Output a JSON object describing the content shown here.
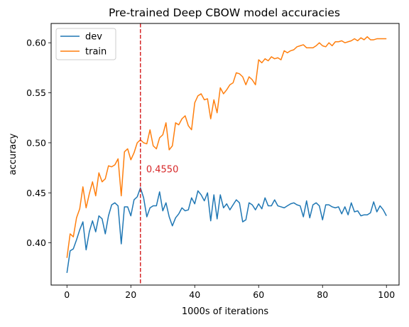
{
  "chart_data": {
    "type": "line",
    "title": "Pre-trained Deep CBOW model accuracies",
    "xlabel": "1000s of iterations",
    "ylabel": "accuracy",
    "xlim": [
      -4.95,
      103.95
    ],
    "ylim": [
      0.3578,
      0.6193
    ],
    "xticks": [
      0,
      20,
      40,
      60,
      80,
      100
    ],
    "yticks": [
      0.4,
      0.45,
      0.5,
      0.55,
      0.6
    ],
    "xtick_labels": [
      "0",
      "20",
      "40",
      "60",
      "80",
      "100"
    ],
    "ytick_labels": [
      "0.40",
      "0.45",
      "0.50",
      "0.55",
      "0.60"
    ],
    "legend_position": "upper-left",
    "grid": false,
    "vline": {
      "x": 23,
      "color": "#d62728",
      "style": "dashed"
    },
    "annotation": {
      "text": "0.4550",
      "x": 24.8,
      "y": 0.4705,
      "color": "#d62728"
    },
    "series": [
      {
        "name": "dev",
        "color": "#1f77b4",
        "values": [
          0.37,
          0.392,
          0.394,
          0.403,
          0.413,
          0.421,
          0.393,
          0.411,
          0.422,
          0.411,
          0.427,
          0.424,
          0.409,
          0.427,
          0.438,
          0.44,
          0.437,
          0.399,
          0.436,
          0.436,
          0.427,
          0.443,
          0.446,
          0.455,
          0.445,
          0.426,
          0.435,
          0.437,
          0.437,
          0.451,
          0.432,
          0.44,
          0.426,
          0.417,
          0.425,
          0.429,
          0.435,
          0.432,
          0.433,
          0.445,
          0.439,
          0.452,
          0.448,
          0.442,
          0.45,
          0.422,
          0.448,
          0.424,
          0.448,
          0.435,
          0.439,
          0.433,
          0.438,
          0.443,
          0.44,
          0.421,
          0.423,
          0.44,
          0.438,
          0.433,
          0.439,
          0.434,
          0.445,
          0.437,
          0.437,
          0.443,
          0.437,
          0.436,
          0.435,
          0.437,
          0.439,
          0.44,
          0.438,
          0.437,
          0.426,
          0.442,
          0.425,
          0.438,
          0.44,
          0.437,
          0.423,
          0.438,
          0.438,
          0.436,
          0.435,
          0.436,
          0.429,
          0.436,
          0.428,
          0.44,
          0.431,
          0.432,
          0.427,
          0.428,
          0.428,
          0.43,
          0.441,
          0.431,
          0.437,
          0.433,
          0.427
        ]
      },
      {
        "name": "train",
        "color": "#ff7f0e",
        "values": [
          0.385,
          0.409,
          0.406,
          0.425,
          0.434,
          0.456,
          0.435,
          0.449,
          0.461,
          0.447,
          0.47,
          0.461,
          0.464,
          0.477,
          0.476,
          0.478,
          0.484,
          0.447,
          0.491,
          0.494,
          0.483,
          0.49,
          0.5,
          0.503,
          0.5,
          0.499,
          0.513,
          0.497,
          0.494,
          0.505,
          0.508,
          0.52,
          0.493,
          0.497,
          0.52,
          0.518,
          0.524,
          0.527,
          0.517,
          0.513,
          0.54,
          0.547,
          0.549,
          0.543,
          0.544,
          0.524,
          0.543,
          0.53,
          0.555,
          0.549,
          0.553,
          0.558,
          0.56,
          0.57,
          0.569,
          0.566,
          0.558,
          0.566,
          0.563,
          0.558,
          0.583,
          0.58,
          0.584,
          0.582,
          0.586,
          0.584,
          0.585,
          0.583,
          0.592,
          0.59,
          0.592,
          0.593,
          0.596,
          0.597,
          0.598,
          0.595,
          0.595,
          0.595,
          0.597,
          0.6,
          0.597,
          0.596,
          0.6,
          0.597,
          0.601,
          0.601,
          0.602,
          0.6,
          0.601,
          0.602,
          0.604,
          0.602,
          0.605,
          0.603,
          0.606,
          0.603,
          0.603,
          0.604,
          0.604,
          0.604,
          0.604
        ]
      }
    ]
  }
}
